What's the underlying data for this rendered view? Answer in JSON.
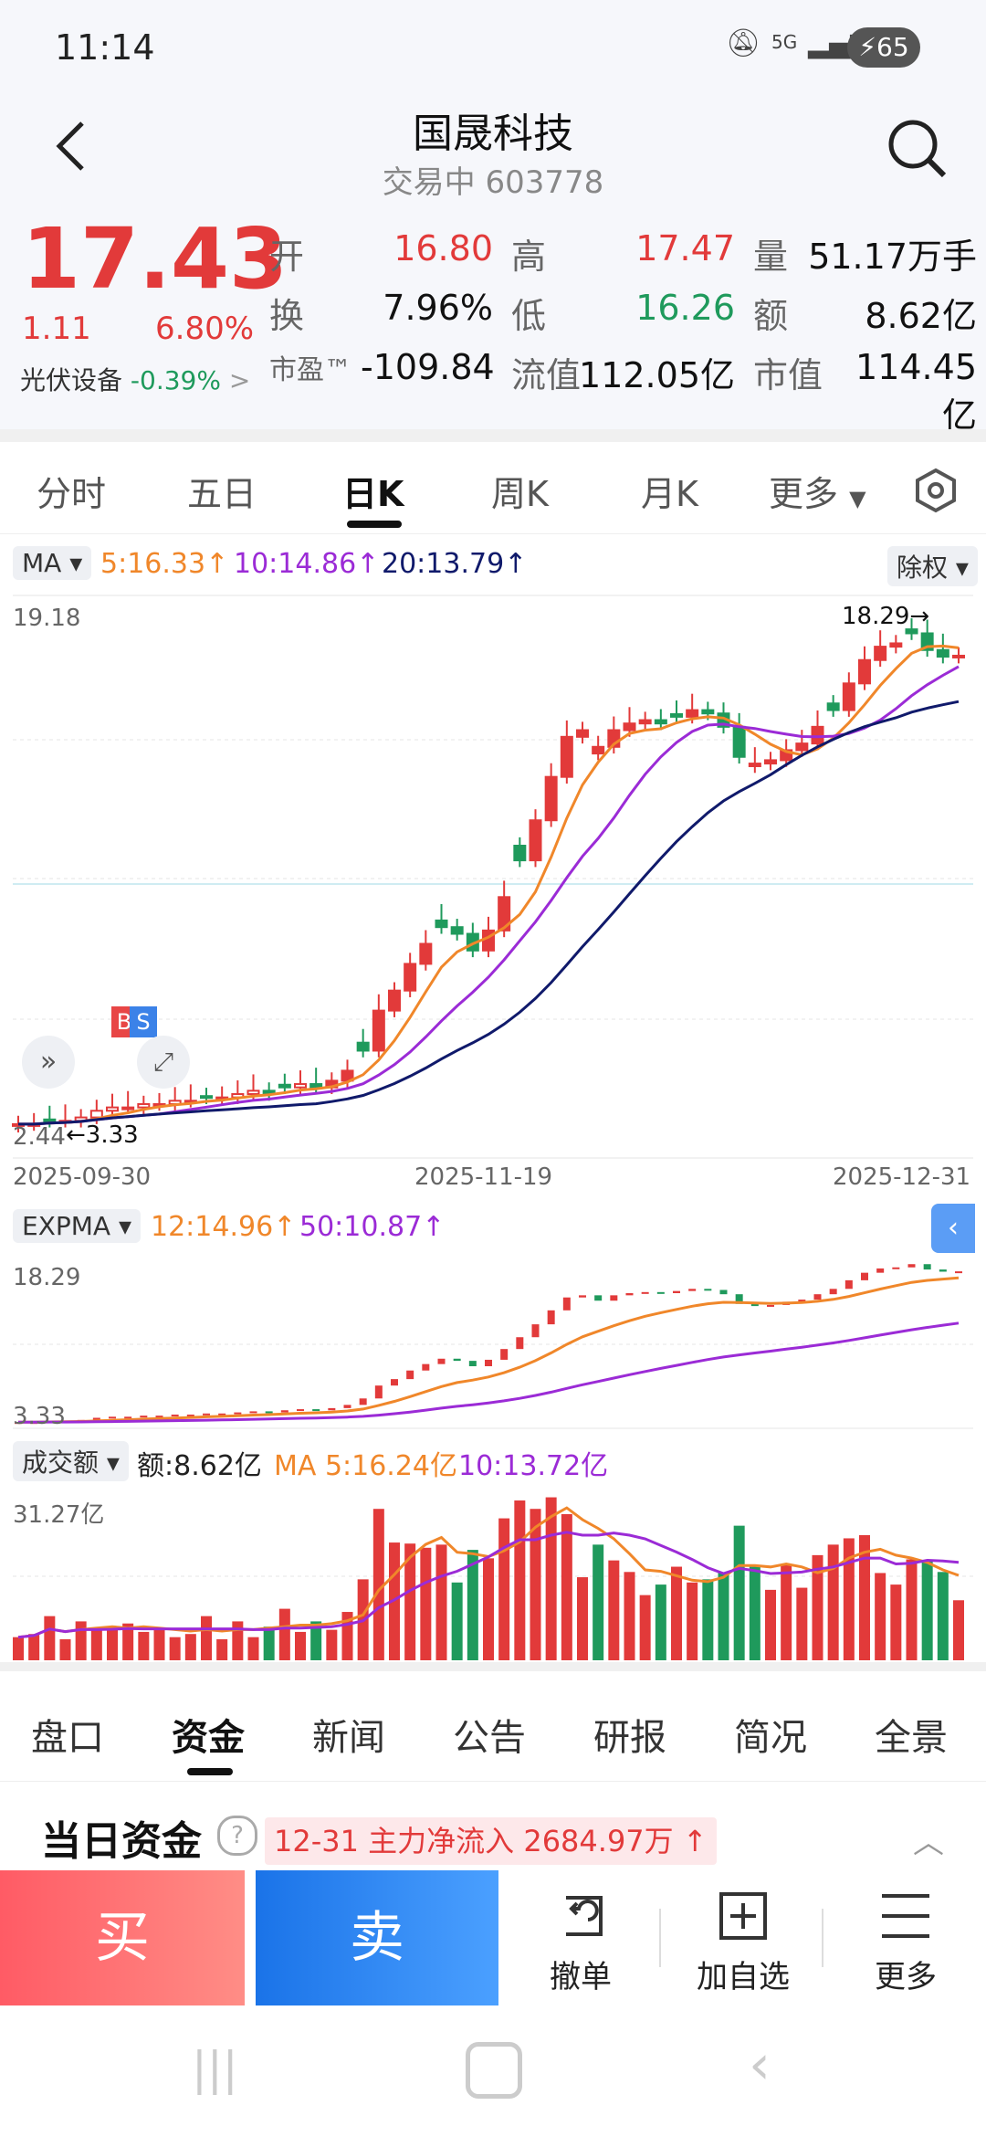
{
  "status": {
    "time": "11:14",
    "network": "5G",
    "battery": "65"
  },
  "header": {
    "title": "国晟科技",
    "status_label": "交易中",
    "code": "603778"
  },
  "quote": {
    "price": "17.43",
    "change": "1.11",
    "change_pct": "6.80%",
    "sector": "光伏设备",
    "sector_pct": "-0.39%",
    "open_label": "开",
    "open": "16.80",
    "high_label": "高",
    "high": "17.47",
    "vol_label": "量",
    "vol": "51.17万手",
    "turnover_label": "换",
    "turnover": "7.96%",
    "low_label": "低",
    "low": "16.26",
    "amount_label": "额",
    "amount": "8.62亿",
    "pe_label": "市盈™",
    "pe": "-109.84",
    "float_label": "流值",
    "float_cap": "112.05亿",
    "mcap_label": "市值",
    "mcap": "114.45亿"
  },
  "tabs": [
    "分时",
    "五日",
    "日K",
    "周K",
    "月K",
    "更多"
  ],
  "active_tab": "日K",
  "main_chart": {
    "indicator": "MA",
    "ma5": "5:16.33↑",
    "ma10": "10:14.86↑",
    "ma20": "20:13.79↑",
    "adjust": "除权",
    "ytop": "19.18",
    "ybottom": "2.44",
    "max_label": "18.29→",
    "min_label": "←3.33",
    "dates": [
      "2025-09-30",
      "2025-11-19",
      "2025-12-31"
    ],
    "marker_b": "B",
    "marker_s": "S"
  },
  "expma": {
    "indicator": "EXPMA",
    "e12": "12:14.96↑",
    "e50": "50:10.87↑",
    "ytop": "18.29",
    "ybottom": "3.33"
  },
  "volume": {
    "indicator": "成交额",
    "amount": "额:8.62亿",
    "ma5": "MA 5:16.24亿",
    "ma10": "10:13.72亿",
    "ytop": "31.27亿"
  },
  "bottom_tabs": [
    "盘口",
    "资金",
    "新闻",
    "公告",
    "研报",
    "简况",
    "全景"
  ],
  "active_bottom_tab": "资金",
  "capital": {
    "title": "当日资金",
    "flow": "12-31 主力净流入 2684.97万"
  },
  "actions": {
    "buy": "买",
    "sell": "卖",
    "cancel": "撤单",
    "add": "加自选",
    "more": "更多"
  },
  "colors": {
    "up": "#e23a3a",
    "down": "#1f9a5c",
    "ma5": "#f0872a",
    "ma10": "#9b2bd6",
    "ma20": "#101a6b"
  },
  "chart_data": {
    "type": "candlestick",
    "x_range": [
      "2025-09-30",
      "2025-12-31"
    ],
    "ylim": [
      2.44,
      19.18
    ],
    "close_approx": [
      3.4,
      3.4,
      3.5,
      3.5,
      3.6,
      3.8,
      3.9,
      3.9,
      4.0,
      4.0,
      4.1,
      4.1,
      4.2,
      4.2,
      4.3,
      4.4,
      4.3,
      4.5,
      4.6,
      4.5,
      4.7,
      5.0,
      5.6,
      6.8,
      7.4,
      8.2,
      8.8,
      9.3,
      9.1,
      8.6,
      9.2,
      10.2,
      11.3,
      12.5,
      13.8,
      15.0,
      15.2,
      14.7,
      15.2,
      15.4,
      15.5,
      15.4,
      15.6,
      15.8,
      15.7,
      15.3,
      14.4,
      14.2,
      14.3,
      14.6,
      14.8,
      15.3,
      15.8,
      16.6,
      17.3,
      17.7,
      17.8,
      18.1,
      17.6,
      17.4,
      17.43
    ],
    "volume_ylim": [
      0,
      31.27
    ]
  }
}
